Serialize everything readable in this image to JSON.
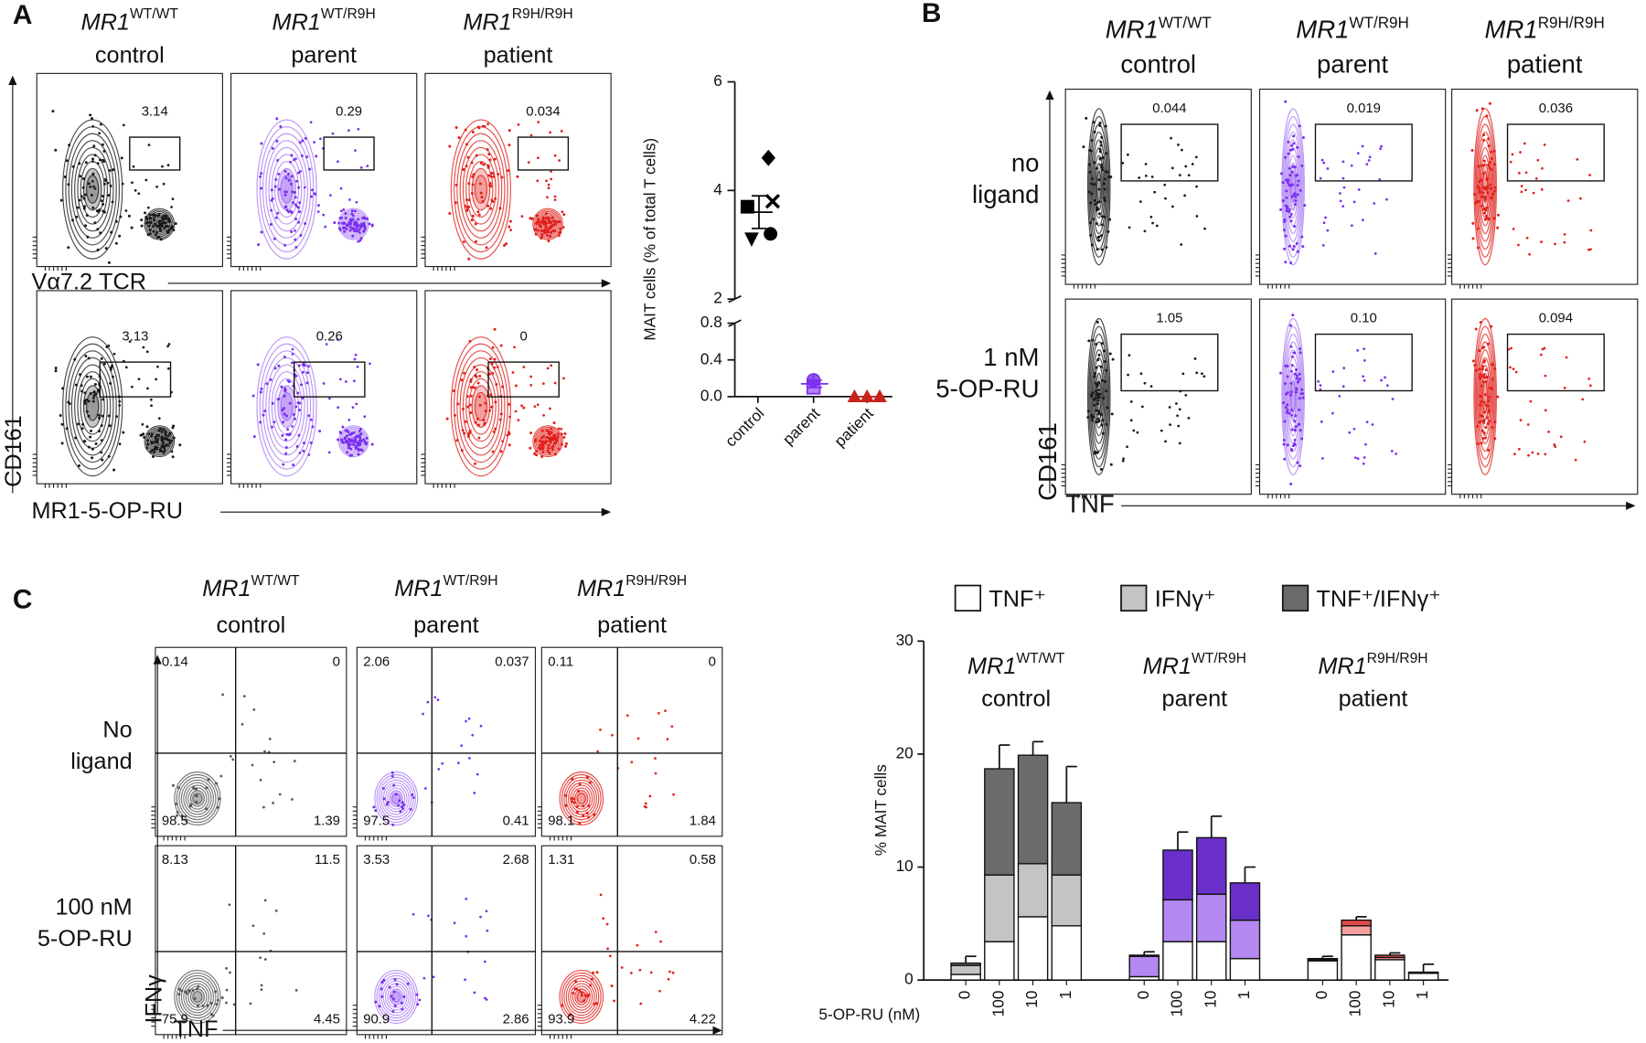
{
  "panel_a": {
    "label": "A",
    "y_label": "CD161",
    "columns": [
      {
        "gene": "MR1",
        "genotype": "WT/WT",
        "group": "control",
        "color": "#1a1a1a"
      },
      {
        "gene": "MR1",
        "genotype": "WT/R9H",
        "group": "parent",
        "color": "#7a2ff0"
      },
      {
        "gene": "MR1",
        "genotype": "R9H/R9H",
        "group": "patient",
        "color": "#e0201b"
      }
    ],
    "rows": [
      {
        "x_label": "Vα7.2 TCR",
        "gates": [
          "3.14",
          "0.29",
          "0.034"
        ]
      },
      {
        "x_label": "MR1-5-OP-RU",
        "gates": [
          "3.13",
          "0.26",
          "0"
        ]
      }
    ]
  },
  "panel_b": {
    "label": "B",
    "x_label": "TNF",
    "y_label": "CD161",
    "columns": [
      {
        "gene": "MR1",
        "genotype": "WT/WT",
        "group": "control",
        "color": "#1a1a1a"
      },
      {
        "gene": "MR1",
        "genotype": "WT/R9H",
        "group": "parent",
        "color": "#7a2ff0"
      },
      {
        "gene": "MR1",
        "genotype": "R9H/R9H",
        "group": "patient",
        "color": "#e0201b"
      }
    ],
    "rows": [
      {
        "label": [
          "no",
          "ligand"
        ],
        "gates": [
          "0.044",
          "0.019",
          "0.036"
        ]
      },
      {
        "label": [
          "1 nM",
          "5-OP-RU"
        ],
        "gates": [
          "1.05",
          "0.10",
          "0.094"
        ]
      }
    ]
  },
  "panel_c": {
    "label": "C",
    "x_label": "TNF",
    "y_label": "IFNγ",
    "columns": [
      {
        "gene": "MR1",
        "genotype": "WT/WT",
        "group": "control",
        "color": "#555555"
      },
      {
        "gene": "MR1",
        "genotype": "WT/R9H",
        "group": "parent",
        "color": "#7a2ff0"
      },
      {
        "gene": "MR1",
        "genotype": "R9H/R9H",
        "group": "patient",
        "color": "#e0201b"
      }
    ],
    "rows": [
      {
        "label": [
          "No",
          "ligand"
        ],
        "quadrants": [
          [
            "0.14",
            "0",
            "98.5",
            "1.39"
          ],
          [
            "2.06",
            "0.037",
            "97.5",
            "0.41"
          ],
          [
            "0.11",
            "0",
            "98.1",
            "1.84"
          ]
        ]
      },
      {
        "label": [
          "100 nM",
          "5-OP-RU"
        ],
        "quadrants": [
          [
            "8.13",
            "11.5",
            "75.9",
            "4.45"
          ],
          [
            "3.53",
            "2.68",
            "90.9",
            "2.86"
          ],
          [
            "1.31",
            "0.58",
            "93.9",
            "4.22"
          ]
        ]
      }
    ]
  },
  "chart_data": [
    {
      "type": "scatter",
      "y_label": "MAIT cells (% of total T cells)",
      "categories": [
        "control",
        "parent",
        "patient"
      ],
      "colors": [
        "#000000",
        "#7a2ff0",
        "#c8231b"
      ],
      "values": [
        [
          3.7,
          4.6,
          3.1,
          3.2,
          3.8
        ],
        [
          0.18,
          0.1
        ],
        [
          0,
          0,
          0
        ]
      ],
      "markers": [
        [
          "square",
          "diamond",
          "triangle-down",
          "circle",
          "x"
        ],
        [
          "half-circle",
          "half-square"
        ],
        [
          "triangle",
          "triangle",
          "triangle"
        ]
      ],
      "means": [
        3.6,
        0.14,
        0
      ],
      "sems": [
        0.3,
        0.04,
        0
      ],
      "ylim_upper": [
        2,
        6
      ],
      "yticks_upper": [
        2,
        4,
        6
      ],
      "ylim_lower": [
        0,
        0.8
      ],
      "yticks_lower": [
        {
          "value": 0,
          "label": "0.0"
        },
        0.4,
        0.8
      ]
    },
    {
      "type": "bar",
      "y_label": "% MAIT cells",
      "x_label": "5-OP-RU (nM)",
      "ylim": [
        0,
        30
      ],
      "yticks": [
        0,
        10,
        20,
        30
      ],
      "legend": [
        {
          "name": "TNF⁺",
          "color": "#ffffff"
        },
        {
          "name": "IFNγ⁺",
          "color": "#c4c4c4"
        },
        {
          "name": "TNF⁺/IFNγ⁺",
          "color": "#6b6b6b"
        }
      ],
      "groups": [
        {
          "gene": "MR1",
          "genotype": "WT/WT",
          "name": "control",
          "categories": [
            "0",
            "100",
            "10",
            "1"
          ],
          "colors": [
            "#ffffff",
            "#c4c4c4",
            "#6b6b6b"
          ],
          "series_values": [
            [
              0.5,
              3.4,
              5.6,
              4.8
            ],
            [
              0.8,
              5.9,
              4.7,
              4.5
            ],
            [
              0.2,
              9.4,
              9.6,
              6.4
            ]
          ],
          "errors": [
            0.6,
            2.1,
            1.2,
            3.2
          ]
        },
        {
          "gene": "MR1",
          "genotype": "WT/R9H",
          "name": "parent",
          "categories": [
            "0",
            "100",
            "10",
            "1"
          ],
          "colors": [
            "#ffffff",
            "#b388f0",
            "#6a2fc9"
          ],
          "series_values": [
            [
              0.3,
              3.4,
              3.4,
              1.9
            ],
            [
              1.8,
              3.7,
              4.2,
              3.4
            ],
            [
              0.1,
              4.4,
              5.0,
              3.3
            ]
          ],
          "errors": [
            0.3,
            1.6,
            1.9,
            1.4
          ]
        },
        {
          "gene": "MR1",
          "genotype": "R9H/R9H",
          "name": "patient",
          "categories": [
            "0",
            "100",
            "10",
            "1"
          ],
          "colors": [
            "#ffffff",
            "#f4a0a0",
            "#e04a4a"
          ],
          "series_values": [
            [
              1.7,
              4.0,
              1.8,
              0.6
            ],
            [
              0.1,
              0.8,
              0.2,
              0.05
            ],
            [
              0.1,
              0.5,
              0.2,
              0.05
            ]
          ],
          "errors": [
            0.2,
            0.3,
            0.2,
            0.7
          ]
        }
      ]
    }
  ]
}
